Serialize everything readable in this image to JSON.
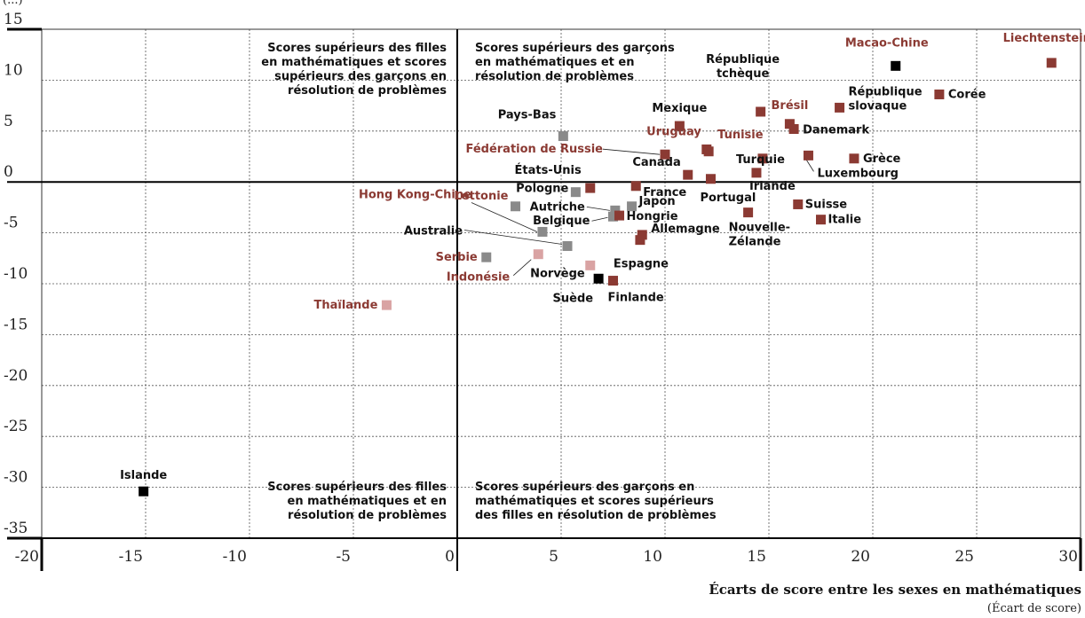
{
  "chart_data": {
    "type": "scatter",
    "xlabel": "Écarts de score entre les sexes en mathématiques",
    "xunit": "(Écart de score)",
    "ylabel_partial": "(...)",
    "xlim": [
      -20,
      30
    ],
    "ylim": [
      -35,
      15
    ],
    "xticks": [
      -20,
      -15,
      -10,
      -5,
      0,
      5,
      10,
      15,
      20,
      25,
      30
    ],
    "yticks": [
      15,
      10,
      5,
      0,
      -5,
      -10,
      -15,
      -20,
      -25,
      -30,
      -35
    ],
    "grid": true,
    "colors": {
      "partner": "#8b3a33",
      "partner_label": "#8b3a33",
      "oecd": "#111111",
      "grey": "#8a8a8a",
      "black": "#000000",
      "pink": "#d9a3a3"
    },
    "quadrant_notes": {
      "top_left": [
        "Scores supérieurs des filles",
        "en mathématiques et scores",
        "supérieurs des garçons en",
        "résolution de problèmes"
      ],
      "top_right": [
        "Scores supérieurs des garçons",
        "en mathématiques et en",
        "résolution de problèmes"
      ],
      "bottom_left": [
        "Scores supérieurs des filles",
        "en mathématiques et en",
        "résolution de problèmes"
      ],
      "bottom_right": [
        "Scores supérieurs des garçons en",
        "mathématiques et scores supérieurs",
        "des filles en résolution de problèmes"
      ]
    },
    "points": [
      {
        "label": "Islande",
        "x": -15.1,
        "y": -30.4,
        "marker": "black",
        "text": "oecd"
      },
      {
        "label": "Thaïlande",
        "x": -3.4,
        "y": -12.1,
        "marker": "pink",
        "text": "partner"
      },
      {
        "label": "Serbie",
        "x": 1.4,
        "y": -7.4,
        "marker": "grey",
        "text": "partner"
      },
      {
        "label": "Indonésie",
        "x": 3.9,
        "y": -7.1,
        "marker": "pink",
        "text": "partner"
      },
      {
        "label": "Lettonie",
        "x": 2.8,
        "y": -2.4,
        "marker": "grey",
        "text": "partner"
      },
      {
        "label": "Hong Kong-Chine",
        "x": 4.1,
        "y": -4.9,
        "marker": "grey",
        "text": "partner"
      },
      {
        "label": "Australie",
        "x": 5.3,
        "y": -6.3,
        "marker": "grey",
        "text": "oecd"
      },
      {
        "label": "Pays-Bas",
        "x": 5.1,
        "y": 4.5,
        "marker": "grey",
        "text": "oecd"
      },
      {
        "label": "Pologne",
        "x": 5.7,
        "y": -1.0,
        "marker": "grey",
        "text": "oecd"
      },
      {
        "label": "États-Unis",
        "x": 6.4,
        "y": -0.6,
        "marker": "partner",
        "text": "oecd"
      },
      {
        "label": "Norvège",
        "x": 6.4,
        "y": -8.2,
        "marker": "pink",
        "text": "oecd"
      },
      {
        "label": "Suède",
        "x": 6.8,
        "y": -9.5,
        "marker": "black",
        "text": "oecd"
      },
      {
        "label": "Finlande",
        "x": 7.5,
        "y": -9.7,
        "marker": "partner",
        "text": "oecd"
      },
      {
        "label": "Autriche",
        "x": 7.6,
        "y": -2.8,
        "marker": "grey",
        "text": "oecd"
      },
      {
        "label": "Belgique",
        "x": 7.5,
        "y": -3.4,
        "marker": "grey",
        "text": "oecd"
      },
      {
        "label": "Hongrie",
        "x": 7.8,
        "y": -3.3,
        "marker": "partner",
        "text": "oecd"
      },
      {
        "label": "Japon",
        "x": 8.4,
        "y": -2.4,
        "marker": "grey",
        "text": "oecd"
      },
      {
        "label": "France",
        "x": 8.6,
        "y": -0.4,
        "marker": "partner",
        "text": "oecd"
      },
      {
        "label": "Allemagne",
        "x": 8.9,
        "y": -5.2,
        "marker": "partner",
        "text": "oecd"
      },
      {
        "label": "Espagne",
        "x": 8.8,
        "y": -5.7,
        "marker": "partner",
        "text": "oecd"
      },
      {
        "label": "Mexique",
        "x": 10.7,
        "y": 5.5,
        "marker": "partner",
        "text": "oecd"
      },
      {
        "label": "Fédération de Russie",
        "x": 10.0,
        "y": 2.7,
        "marker": "partner",
        "text": "partner"
      },
      {
        "label": "Canada",
        "x": 11.1,
        "y": 0.7,
        "marker": "partner",
        "text": "oecd"
      },
      {
        "label": "Uruguay",
        "x": 12.0,
        "y": 3.2,
        "marker": "partner",
        "text": "partner"
      },
      {
        "label": "Tunisie",
        "x": 12.1,
        "y": 3.0,
        "marker": "partner",
        "text": "partner"
      },
      {
        "label": "Portugal",
        "x": 12.2,
        "y": 0.3,
        "marker": "partner",
        "text": "oecd"
      },
      {
        "label": "République tchèque",
        "x": 14.6,
        "y": 6.9,
        "marker": "partner",
        "text": "oecd"
      },
      {
        "label": "Turquie",
        "x": 14.7,
        "y": 2.3,
        "marker": "partner",
        "text": "oecd"
      },
      {
        "label": "Irlande",
        "x": 14.4,
        "y": 0.9,
        "marker": "partner",
        "text": "oecd"
      },
      {
        "label": "Nouvelle-Zélande",
        "x": 14.0,
        "y": -3.0,
        "marker": "partner",
        "text": "oecd"
      },
      {
        "label": "Brésil",
        "x": 16.0,
        "y": 5.7,
        "marker": "partner",
        "text": "partner"
      },
      {
        "label": "Danemark",
        "x": 16.2,
        "y": 5.2,
        "marker": "partner",
        "text": "oecd"
      },
      {
        "label": "Suisse",
        "x": 16.4,
        "y": -2.2,
        "marker": "partner",
        "text": "oecd"
      },
      {
        "label": "Luxembourg",
        "x": 16.9,
        "y": 2.6,
        "marker": "partner",
        "text": "oecd"
      },
      {
        "label": "Italie",
        "x": 17.5,
        "y": -3.7,
        "marker": "partner",
        "text": "oecd"
      },
      {
        "label": "République slovaque",
        "x": 18.4,
        "y": 7.3,
        "marker": "partner",
        "text": "oecd"
      },
      {
        "label": "Grèce",
        "x": 19.1,
        "y": 2.3,
        "marker": "partner",
        "text": "oecd"
      },
      {
        "label": "Macao-Chine",
        "x": 21.1,
        "y": 11.4,
        "marker": "black",
        "text": "partner"
      },
      {
        "label": "Corée",
        "x": 23.2,
        "y": 8.6,
        "marker": "partner",
        "text": "oecd"
      },
      {
        "label": "Liechtenstein",
        "x": 28.6,
        "y": 11.7,
        "marker": "partner",
        "text": "partner"
      }
    ]
  }
}
